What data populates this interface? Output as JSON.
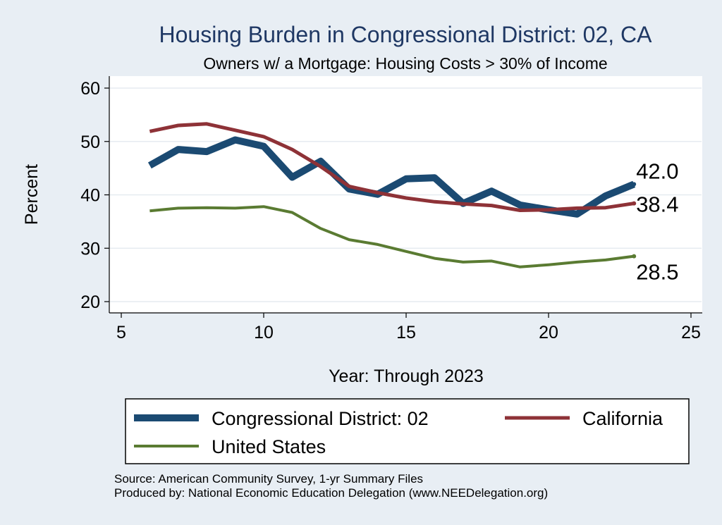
{
  "chart_data": {
    "type": "line",
    "title": "Housing Burden in Congressional District:  02, CA",
    "subtitle": "Owners w/ a Mortgage: Housing Costs > 30% of Income",
    "xlabel": "Year: Through 2023",
    "ylabel": "Percent",
    "xlim": [
      5,
      25
    ],
    "ylim": [
      20,
      60
    ],
    "xticks": [
      5,
      10,
      15,
      20,
      25
    ],
    "yticks": [
      20,
      30,
      40,
      50,
      60
    ],
    "grid": true,
    "legend_position": "bottom",
    "series": [
      {
        "name": "Congressional District:  02",
        "color": "#1b4a72",
        "x": [
          6,
          7,
          8,
          9,
          10,
          11,
          12,
          13,
          14,
          15,
          16,
          17,
          18,
          19,
          20,
          21,
          22,
          23
        ],
        "values": [
          45.5,
          48.5,
          48.1,
          50.3,
          49.1,
          43.3,
          46.3,
          41.1,
          40.1,
          43.0,
          43.2,
          38.4,
          40.7,
          38.1,
          37.2,
          36.4,
          39.8,
          42.0
        ],
        "end_label": "42.0"
      },
      {
        "name": "California",
        "color": "#8e3237",
        "x": [
          6,
          7,
          8,
          9,
          10,
          11,
          12,
          13,
          14,
          15,
          16,
          17,
          18,
          19,
          20,
          21,
          22,
          23
        ],
        "values": [
          51.9,
          53.0,
          53.3,
          52.1,
          50.9,
          48.5,
          45.3,
          41.6,
          40.4,
          39.4,
          38.7,
          38.3,
          38.0,
          37.1,
          37.2,
          37.5,
          37.6,
          38.4
        ],
        "end_label": "38.4"
      },
      {
        "name": "United States",
        "color": "#5a7b32",
        "x": [
          6,
          7,
          8,
          9,
          10,
          11,
          12,
          13,
          14,
          15,
          16,
          17,
          18,
          19,
          20,
          21,
          22,
          23
        ],
        "values": [
          37.0,
          37.5,
          37.6,
          37.5,
          37.8,
          36.7,
          33.7,
          31.6,
          30.7,
          29.4,
          28.1,
          27.4,
          27.6,
          26.5,
          26.9,
          27.4,
          27.8,
          28.5
        ],
        "end_label": "28.5"
      }
    ]
  },
  "footer": {
    "source": "Source: American Community Survey, 1-yr Summary Files",
    "produced_by": "Produced by: National Economic Education Delegation (www.NEEDelegation.org)"
  },
  "colors": {
    "page_background": "#e8eef4",
    "plot_background": "#ffffff",
    "title_color": "#1f3864"
  }
}
